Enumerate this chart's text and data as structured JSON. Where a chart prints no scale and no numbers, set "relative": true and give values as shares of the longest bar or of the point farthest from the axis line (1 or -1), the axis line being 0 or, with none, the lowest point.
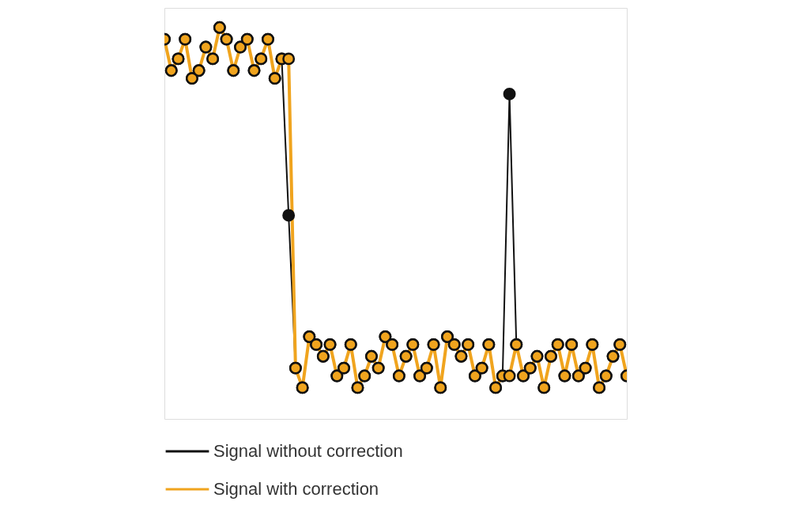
{
  "chart_data": {
    "type": "line",
    "relative": true,
    "legend": "bottom",
    "marker": "circle",
    "line_style": "solid",
    "categories": [
      null,
      null,
      null,
      null,
      null,
      null,
      null,
      null,
      null,
      null,
      null,
      null,
      null,
      null,
      null,
      null,
      null,
      null,
      null,
      null,
      null,
      null,
      null,
      null,
      null,
      null,
      null,
      null,
      null,
      null,
      null,
      null,
      null,
      null,
      null,
      null,
      null,
      null,
      null,
      null,
      null,
      null,
      null,
      null,
      null,
      null,
      null,
      null,
      null,
      null,
      null,
      null,
      null,
      null,
      null,
      null,
      null,
      null,
      null,
      null,
      null,
      null,
      null,
      null,
      null,
      null,
      null,
      null
    ],
    "series": [
      {
        "name": "Signal without correction",
        "color": "#111111",
        "values": [
          0.97,
          0.89,
          0.92,
          0.97,
          0.87,
          0.89,
          0.95,
          0.92,
          1.0,
          0.97,
          0.89,
          0.95,
          0.97,
          0.89,
          0.92,
          0.97,
          0.87,
          0.92,
          0.52,
          0.13,
          0.08,
          0.21,
          0.19,
          0.16,
          0.19,
          0.11,
          0.13,
          0.19,
          0.08,
          0.11,
          0.16,
          0.13,
          0.21,
          0.19,
          0.11,
          0.16,
          0.19,
          0.11,
          0.13,
          0.19,
          0.08,
          0.21,
          0.19,
          0.16,
          0.19,
          0.11,
          0.13,
          0.19,
          0.08,
          0.11,
          0.83,
          0.19,
          0.11,
          0.13,
          0.16,
          0.08,
          0.16,
          0.19,
          0.11,
          0.19,
          0.11,
          0.13,
          0.19,
          0.08,
          0.11,
          0.16,
          0.19,
          0.11
        ]
      },
      {
        "name": "Signal with correction",
        "color": "#f0a41e",
        "values": [
          0.97,
          0.89,
          0.92,
          0.97,
          0.87,
          0.89,
          0.95,
          0.92,
          1.0,
          0.97,
          0.89,
          0.95,
          0.97,
          0.89,
          0.92,
          0.97,
          0.87,
          0.92,
          0.92,
          0.13,
          0.08,
          0.21,
          0.19,
          0.16,
          0.19,
          0.11,
          0.13,
          0.19,
          0.08,
          0.11,
          0.16,
          0.13,
          0.21,
          0.19,
          0.11,
          0.16,
          0.19,
          0.11,
          0.13,
          0.19,
          0.08,
          0.21,
          0.19,
          0.16,
          0.19,
          0.11,
          0.13,
          0.19,
          0.08,
          0.11,
          0.11,
          0.19,
          0.11,
          0.13,
          0.16,
          0.08,
          0.16,
          0.19,
          0.11,
          0.19,
          0.11,
          0.13,
          0.19,
          0.08,
          0.11,
          0.16,
          0.19,
          0.11
        ]
      }
    ]
  }
}
